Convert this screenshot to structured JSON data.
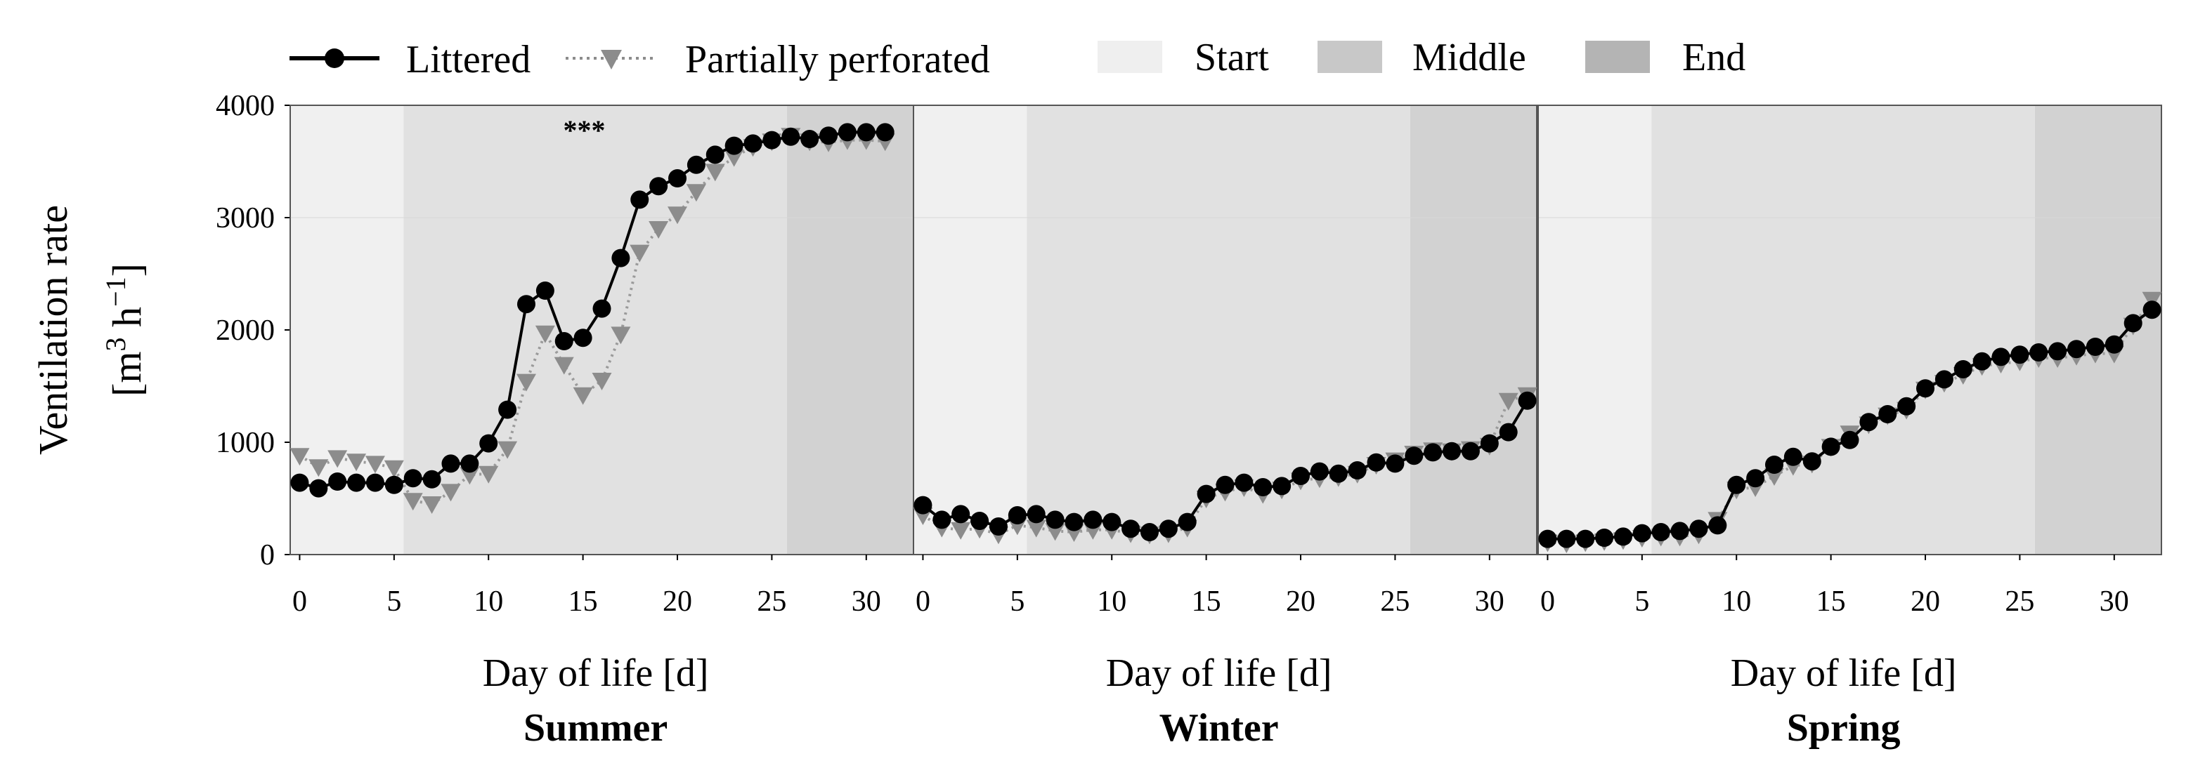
{
  "chart_data": {
    "type": "line",
    "ylabel_line1": "Ventilation rate",
    "ylabel_unit_parts": [
      "[m",
      "3",
      " h",
      "−1",
      "]"
    ],
    "y_ticks": [
      "0",
      "1000",
      "2000",
      "3000",
      "4000"
    ],
    "ylim": [
      0,
      4000
    ],
    "xlim": [
      -0.5,
      32.5
    ],
    "x_ticks": [
      "0",
      "5",
      "10",
      "15",
      "20",
      "25",
      "30"
    ],
    "legend": {
      "series": [
        {
          "name": "Littered",
          "color": "#000000",
          "marker": "circle",
          "line": "solid"
        },
        {
          "name": "Partially perforated",
          "color": "#8c8c8c",
          "marker": "triangle-down",
          "line": "dotted"
        }
      ],
      "phases": [
        {
          "name": "Start",
          "color": "#efefef"
        },
        {
          "name": "Middle",
          "color": "#c8c8c8"
        },
        {
          "name": "End",
          "color": "#b4b4b4"
        }
      ]
    },
    "phase_bands": [
      {
        "name": "Start",
        "from": -0.5,
        "to": 5.5,
        "color": "#f0f0f0"
      },
      {
        "name": "Middle",
        "from": 5.5,
        "to": 25.8,
        "color": "#e1e1e1"
      },
      {
        "name": "End",
        "from": 25.8,
        "to": 32.5,
        "color": "#d2d2d2"
      }
    ],
    "panels": [
      {
        "season": "Summer",
        "xlabel": "Day of life [d]",
        "annotation": {
          "text": "***",
          "x": 16,
          "y": 3870
        },
        "series": [
          {
            "name": "Littered",
            "x": [
              0,
              1,
              2,
              3,
              4,
              5,
              6,
              7,
              8,
              9,
              10,
              11,
              12,
              13,
              14,
              15,
              16,
              17,
              18,
              19,
              20,
              21,
              22,
              23,
              24,
              25,
              26,
              27,
              28,
              29,
              30,
              31
            ],
            "values": [
              640,
              590,
              650,
              640,
              640,
              620,
              680,
              670,
              810,
              810,
              990,
              1290,
              2230,
              2350,
              1900,
              1930,
              2190,
              2640,
              3160,
              3280,
              3350,
              3470,
              3560,
              3640,
              3660,
              3690,
              3720,
              3700,
              3730,
              3760,
              3760,
              3760
            ]
          },
          {
            "name": "Partially perforated",
            "x": [
              0,
              1,
              2,
              3,
              4,
              5,
              6,
              7,
              8,
              9,
              10,
              11,
              12,
              13,
              14,
              15,
              16,
              17,
              18,
              19,
              20,
              21,
              22,
              23,
              24,
              25,
              26,
              27,
              28,
              29,
              30,
              31
            ],
            "values": [
              880,
              780,
              860,
              830,
              810,
              770,
              480,
              450,
              560,
              710,
              720,
              940,
              1540,
              1970,
              1690,
              1420,
              1550,
              1960,
              2690,
              2900,
              3030,
              3230,
              3410,
              3540,
              3630,
              3680,
              3730,
              3680,
              3670,
              3690,
              3690,
              3680
            ]
          }
        ]
      },
      {
        "season": "Winter",
        "xlabel": "Day of life [d]",
        "series": [
          {
            "name": "Littered",
            "x": [
              0,
              1,
              2,
              3,
              4,
              5,
              6,
              7,
              8,
              9,
              10,
              11,
              12,
              13,
              14,
              15,
              16,
              17,
              18,
              19,
              20,
              21,
              22,
              23,
              24,
              25,
              26,
              27,
              28,
              29,
              30,
              31,
              32
            ],
            "values": [
              440,
              310,
              360,
              300,
              250,
              350,
              360,
              310,
              290,
              310,
              290,
              230,
              200,
              230,
              290,
              540,
              620,
              640,
              600,
              610,
              700,
              740,
              720,
              750,
              820,
              810,
              880,
              910,
              920,
              920,
              990,
              1090,
              1370
            ]
          },
          {
            "name": "Partially perforated",
            "x": [
              0,
              1,
              2,
              3,
              4,
              5,
              6,
              7,
              8,
              9,
              10,
              11,
              12,
              13,
              14,
              15,
              16,
              17,
              18,
              19,
              20,
              21,
              22,
              23,
              24,
              25,
              26,
              27,
              28,
              29,
              30,
              31,
              32
            ],
            "values": [
              350,
              240,
              220,
              230,
              180,
              260,
              240,
              210,
              200,
              220,
              220,
              190,
              180,
              190,
              240,
              500,
              560,
              600,
              540,
              580,
              660,
              680,
              690,
              720,
              800,
              840,
              900,
              930,
              920,
              940,
              970,
              1370,
              1420
            ]
          }
        ]
      },
      {
        "season": "Spring",
        "xlabel": "Day of life [d]",
        "series": [
          {
            "name": "Littered",
            "x": [
              0,
              1,
              2,
              3,
              4,
              5,
              6,
              7,
              8,
              9,
              10,
              11,
              12,
              13,
              14,
              15,
              16,
              17,
              18,
              19,
              20,
              21,
              22,
              23,
              24,
              25,
              26,
              27,
              28,
              29,
              30,
              31,
              32
            ],
            "values": [
              140,
              140,
              140,
              150,
              160,
              190,
              200,
              210,
              230,
              260,
              620,
              680,
              800,
              870,
              830,
              960,
              1020,
              1180,
              1250,
              1320,
              1480,
              1560,
              1650,
              1720,
              1760,
              1780,
              1800,
              1810,
              1830,
              1850,
              1870,
              2060,
              2180
            ]
          },
          {
            "name": "Partially perforated",
            "x": [
              0,
              1,
              2,
              3,
              4,
              5,
              6,
              7,
              8,
              9,
              10,
              11,
              12,
              13,
              14,
              15,
              16,
              17,
              18,
              19,
              20,
              21,
              22,
              23,
              24,
              25,
              26,
              27,
              28,
              29,
              30,
              31,
              32
            ],
            "values": [
              110,
              100,
              110,
              120,
              130,
              150,
              160,
              160,
              180,
              310,
              580,
              600,
              700,
              790,
              810,
              960,
              1080,
              1160,
              1240,
              1290,
              1470,
              1530,
              1600,
              1680,
              1700,
              1720,
              1750,
              1750,
              1770,
              1790,
              1790,
              2040,
              2270
            ]
          }
        ]
      }
    ]
  }
}
